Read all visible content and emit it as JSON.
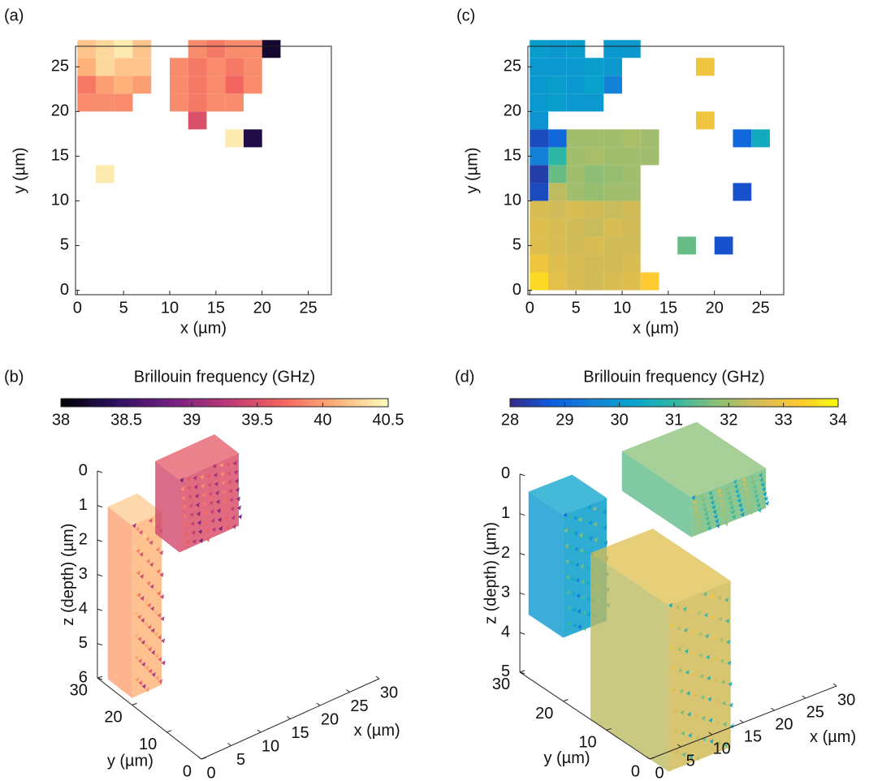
{
  "chart_data": [
    {
      "type": "heatmap",
      "label": "(a)",
      "xlabel": "x (µm)",
      "ylabel": "y (µm)",
      "colormap": "magma",
      "clim": [
        38,
        40.5
      ],
      "xlim": [
        -0.2,
        27.5
      ],
      "ylim": [
        -0.5,
        27.3
      ],
      "xticks": [
        0,
        5,
        10,
        15,
        20,
        25
      ],
      "yticks": [
        0,
        5,
        10,
        15,
        20,
        25
      ],
      "x": [
        0,
        2,
        4,
        6,
        8,
        10,
        12,
        14,
        16,
        18,
        20,
        22,
        24,
        26
      ],
      "y": [
        0,
        2,
        4,
        6,
        8,
        10,
        12,
        14,
        16,
        18,
        20,
        22,
        24,
        26
      ],
      "z": [
        [
          null,
          null,
          null,
          null,
          null,
          null,
          null,
          null,
          null,
          null,
          null,
          null,
          null,
          null
        ],
        [
          null,
          null,
          null,
          null,
          null,
          null,
          null,
          null,
          null,
          null,
          null,
          null,
          null,
          null
        ],
        [
          null,
          null,
          null,
          null,
          null,
          null,
          null,
          null,
          null,
          null,
          null,
          null,
          null,
          null
        ],
        [
          null,
          null,
          null,
          null,
          null,
          null,
          null,
          null,
          null,
          null,
          null,
          null,
          null,
          null
        ],
        [
          null,
          null,
          null,
          null,
          null,
          null,
          null,
          null,
          null,
          null,
          null,
          null,
          null,
          null
        ],
        [
          null,
          null,
          null,
          null,
          null,
          null,
          null,
          null,
          null,
          null,
          null,
          null,
          null,
          null
        ],
        [
          null,
          40.4,
          null,
          null,
          null,
          null,
          null,
          null,
          null,
          null,
          null,
          null,
          null,
          null
        ],
        [
          null,
          null,
          null,
          null,
          null,
          null,
          null,
          null,
          null,
          null,
          null,
          null,
          null,
          null
        ],
        [
          null,
          null,
          null,
          null,
          null,
          null,
          null,
          null,
          40.4,
          38.3,
          null,
          null,
          null,
          null
        ],
        [
          null,
          null,
          null,
          null,
          null,
          null,
          39.5,
          null,
          null,
          null,
          null,
          null,
          null,
          null
        ],
        [
          39.9,
          39.9,
          39.9,
          null,
          null,
          39.9,
          39.8,
          39.9,
          39.9,
          null,
          null,
          null,
          null,
          null
        ],
        [
          39.8,
          40.0,
          40.1,
          40.0,
          null,
          39.9,
          39.8,
          39.9,
          39.7,
          39.9,
          null,
          null,
          null,
          null
        ],
        [
          40.1,
          40.3,
          40.2,
          40.2,
          null,
          39.9,
          39.8,
          39.9,
          39.8,
          39.9,
          null,
          null,
          null,
          null
        ],
        [
          40.2,
          40.3,
          40.4,
          40.2,
          null,
          null,
          39.9,
          39.8,
          39.9,
          39.9,
          38.2,
          null,
          null,
          null
        ]
      ]
    },
    {
      "type": "scatter3d",
      "label": "(b)",
      "colorbar_label": "Brillouin frequency (GHz)",
      "colormap": "magma",
      "clim": [
        38,
        40.5
      ],
      "cticks": [
        38,
        38.5,
        39,
        39.5,
        40,
        40.5
      ],
      "xlabel": "x (µm)",
      "ylabel": "y (µm)",
      "zlabel": "z (depth) (µm)",
      "xlim": [
        0,
        30
      ],
      "ylim": [
        0,
        30
      ],
      "zlim": [
        0,
        6
      ],
      "xticks": [
        0,
        5,
        10,
        15,
        20,
        25,
        30
      ],
      "yticks": [
        0,
        10,
        20,
        30
      ],
      "zticks": [
        0,
        1,
        2,
        3,
        4,
        5,
        6
      ]
    },
    {
      "type": "heatmap",
      "label": "(c)",
      "xlabel": "x (µm)",
      "ylabel": "y (µm)",
      "colormap": "parula",
      "clim": [
        28,
        34
      ],
      "xlim": [
        -0.2,
        27.5
      ],
      "ylim": [
        -0.5,
        27.3
      ],
      "xticks": [
        0,
        5,
        10,
        15,
        20,
        25
      ],
      "yticks": [
        0,
        5,
        10,
        15,
        20,
        25
      ],
      "x": [
        0,
        2,
        4,
        6,
        8,
        10,
        12,
        14,
        16,
        18,
        20,
        22,
        24,
        26
      ],
      "y": [
        0,
        2,
        4,
        6,
        8,
        10,
        12,
        14,
        16,
        18,
        20,
        22,
        24,
        26
      ],
      "z": [
        [
          33.5,
          32.8,
          32.6,
          32.5,
          32.6,
          32.7,
          33.3,
          null,
          null,
          null,
          null,
          null,
          null,
          null
        ],
        [
          33.0,
          32.7,
          32.6,
          32.5,
          32.5,
          32.6,
          null,
          null,
          null,
          null,
          null,
          null,
          null,
          null
        ],
        [
          32.7,
          32.6,
          32.5,
          32.6,
          32.5,
          32.5,
          null,
          null,
          31.5,
          null,
          28.6,
          null,
          null,
          null
        ],
        [
          32.7,
          32.6,
          32.5,
          32.4,
          32.6,
          32.5,
          null,
          null,
          null,
          null,
          null,
          null,
          null,
          null
        ],
        [
          32.6,
          32.5,
          32.6,
          32.5,
          32.4,
          32.5,
          null,
          null,
          null,
          null,
          null,
          null,
          null,
          null
        ],
        [
          28.5,
          32.3,
          32.0,
          31.9,
          32.0,
          32.0,
          null,
          null,
          null,
          null,
          null,
          28.6,
          null,
          null
        ],
        [
          28.3,
          31.5,
          32.0,
          31.8,
          31.9,
          32.0,
          null,
          null,
          null,
          null,
          null,
          null,
          null,
          null
        ],
        [
          29.5,
          31.0,
          32.0,
          32.1,
          32.0,
          32.0,
          32.0,
          null,
          null,
          null,
          null,
          null,
          null,
          null
        ],
        [
          28.5,
          29.0,
          32.0,
          32.0,
          32.0,
          32.1,
          32.0,
          null,
          null,
          null,
          null,
          29.0,
          30.5,
          null
        ],
        [
          29.9,
          null,
          null,
          null,
          null,
          null,
          null,
          null,
          null,
          33.0,
          null,
          null,
          null,
          null
        ],
        [
          30.0,
          30.1,
          30.0,
          30.0,
          null,
          null,
          null,
          null,
          null,
          null,
          null,
          null,
          null,
          null
        ],
        [
          30.0,
          30.1,
          30.0,
          30.2,
          29.5,
          null,
          null,
          null,
          null,
          null,
          null,
          null,
          null,
          null
        ],
        [
          30.0,
          30.0,
          30.0,
          30.1,
          30.0,
          null,
          null,
          null,
          null,
          33.0,
          null,
          null,
          null,
          null
        ],
        [
          30.1,
          30.0,
          30.1,
          null,
          30.0,
          30.0,
          null,
          null,
          null,
          null,
          null,
          null,
          null,
          null
        ]
      ]
    },
    {
      "type": "scatter3d",
      "label": "(d)",
      "colorbar_label": "Brillouin frequency (GHz)",
      "colormap": "parula",
      "clim": [
        28,
        34
      ],
      "cticks": [
        28,
        29,
        30,
        31,
        32,
        33,
        34
      ],
      "xlabel": "x (µm)",
      "ylabel": "y (µm)",
      "zlabel": "z (depth) (µm)",
      "xlim": [
        0,
        30
      ],
      "ylim": [
        0,
        30
      ],
      "zlim": [
        0,
        5
      ],
      "xticks": [
        0,
        5,
        10,
        15,
        20,
        25,
        30
      ],
      "yticks": [
        0,
        10,
        20,
        30
      ],
      "zticks": [
        0,
        1,
        2,
        3,
        4,
        5
      ]
    }
  ]
}
